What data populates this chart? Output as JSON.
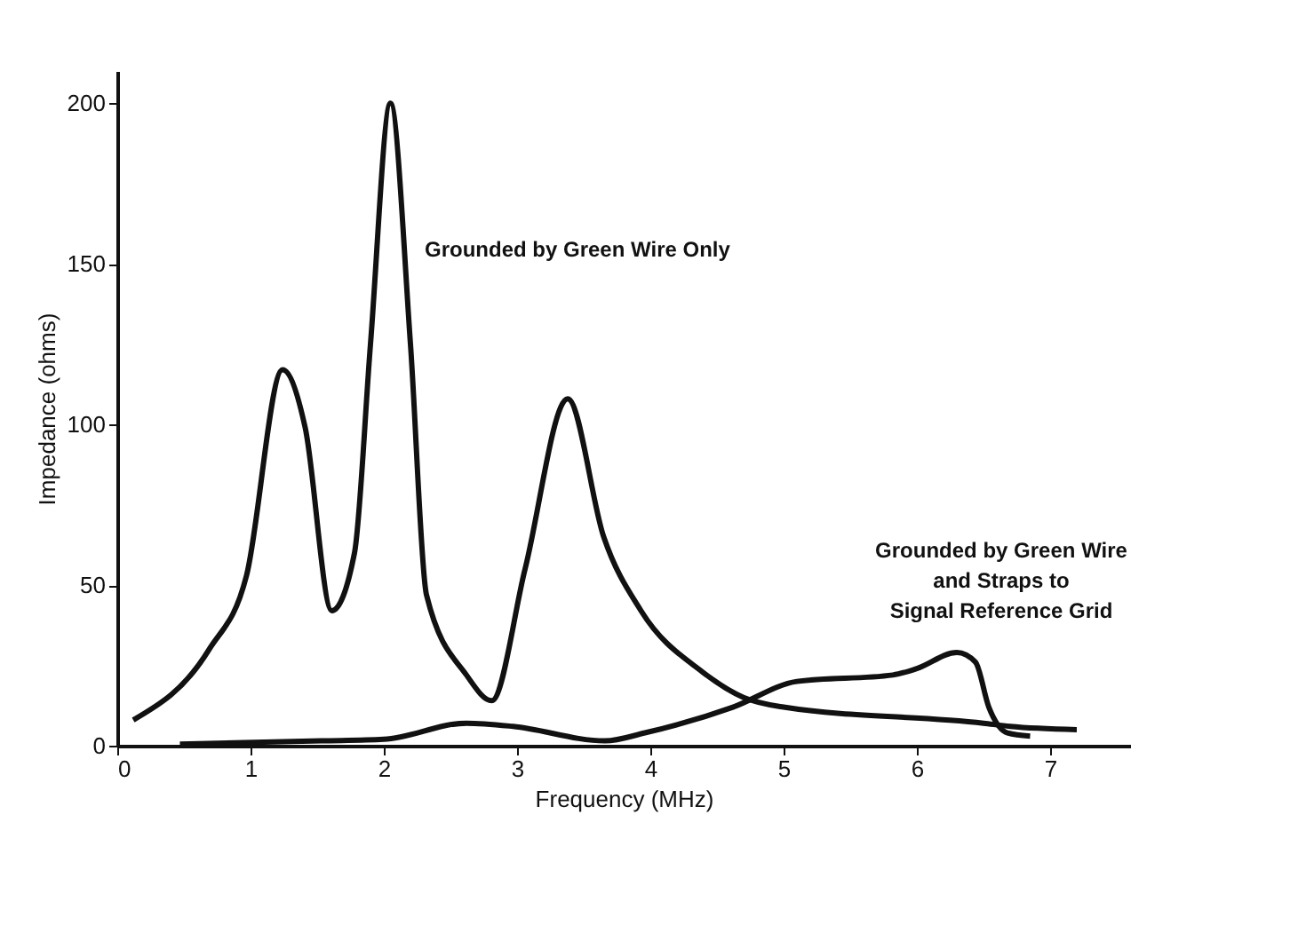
{
  "chart_data": {
    "type": "line",
    "xlabel": "Frequency (MHz)",
    "ylabel": "Impedance (ohms)",
    "xlim": [
      0,
      7.6
    ],
    "xticks": [
      0,
      1,
      2,
      3,
      4,
      5,
      6,
      7
    ],
    "ylim": [
      0,
      210
    ],
    "yticks": [
      0,
      50,
      100,
      150,
      200
    ],
    "grid": false,
    "marker": "none",
    "line_style": "solid",
    "series": [
      {
        "color": "#111111",
        "x": [
          0.12,
          0.69,
          0.97,
          1.24,
          1.41,
          1.61,
          1.78,
          1.9,
          2.05,
          2.2,
          2.32,
          2.62,
          2.81,
          3.06,
          3.38,
          3.65,
          3.93,
          4.39,
          4.7,
          5.0,
          6.5,
          6.7,
          7.2
        ],
        "values": [
          8,
          30,
          53,
          117,
          99,
          42,
          60,
          125,
          200,
          125,
          47,
          22,
          14,
          55,
          108,
          65,
          42,
          23,
          15,
          12,
          7,
          6,
          5
        ]
      },
      {
        "color": "#111111",
        "x": [
          0.47,
          1.53,
          2.0,
          2.62,
          2.97,
          3.66,
          3.96,
          4.62,
          5.1,
          5.82,
          6.0,
          6.3,
          6.44,
          6.54,
          6.68,
          6.85
        ],
        "values": [
          0.5,
          1.5,
          2,
          7,
          6,
          1.5,
          4,
          12,
          20,
          22,
          24,
          29,
          26,
          12,
          4,
          3
        ]
      }
    ],
    "annotations": [
      {
        "text": "Grounded by Green Wire Only",
        "x": 2.2,
        "y": 150
      },
      {
        "text": "Grounded by Green Wire\nand Straps to\nSignal Reference Grid",
        "x": 6.5,
        "y": 22
      }
    ]
  }
}
